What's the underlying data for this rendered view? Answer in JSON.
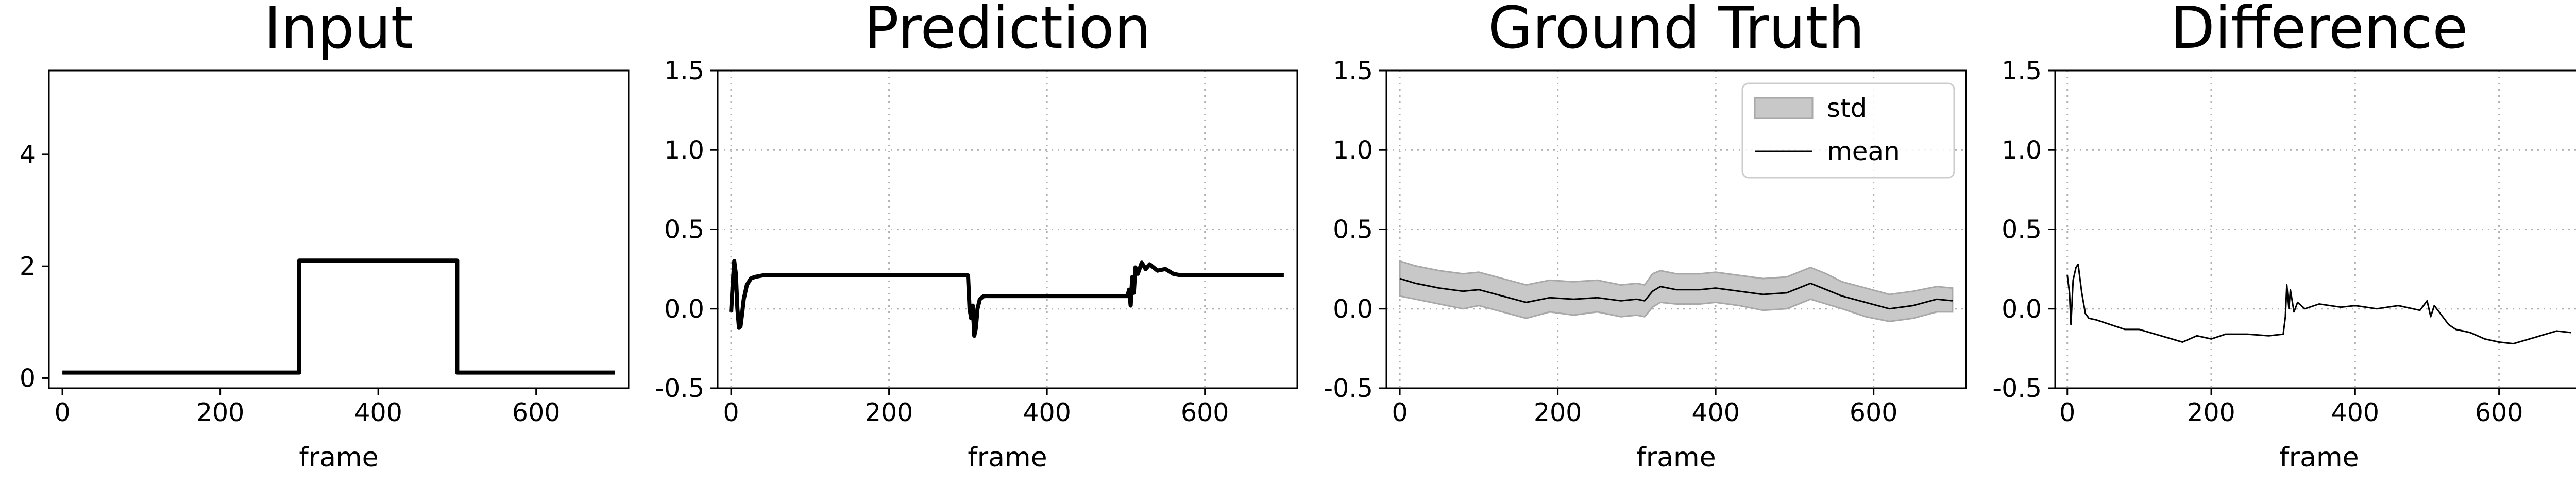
{
  "chart_data": [
    {
      "type": "line",
      "title": "Input",
      "xlabel": "frame",
      "ylabel": "",
      "xlim": [
        -17,
        717
      ],
      "ylim": [
        -0.18,
        5.5
      ],
      "xticks": [
        0,
        200,
        400,
        600
      ],
      "yticks": [
        0,
        2,
        4
      ],
      "grid": false,
      "series": [
        {
          "x": [
            0,
            300,
            300,
            500,
            500,
            700
          ],
          "y": [
            0.1,
            0.1,
            2.1,
            2.1,
            0.1,
            0.1
          ]
        }
      ]
    },
    {
      "type": "line",
      "title": "Prediction",
      "xlabel": "frame",
      "ylabel": "",
      "xlim": [
        -17,
        717
      ],
      "ylim": [
        -0.5,
        1.5
      ],
      "xticks": [
        0,
        200,
        400,
        600
      ],
      "yticks": [
        -0.5,
        0.0,
        0.5,
        1.0,
        1.5
      ],
      "grid": true,
      "series": [
        {
          "x": [
            0,
            2,
            4,
            6,
            8,
            10,
            12,
            14,
            16,
            20,
            25,
            30,
            40,
            50,
            60,
            300,
            302,
            304,
            306,
            308,
            310,
            312,
            315,
            320,
            330,
            500,
            502,
            504,
            506,
            508,
            510,
            512,
            515,
            520,
            525,
            530,
            540,
            550,
            560,
            570,
            700
          ],
          "y": [
            -0.02,
            0.15,
            0.3,
            0.22,
            0.0,
            -0.12,
            -0.11,
            -0.03,
            0.06,
            0.15,
            0.19,
            0.2,
            0.21,
            0.21,
            0.21,
            0.21,
            0.0,
            -0.06,
            0.02,
            -0.17,
            -0.12,
            0.0,
            0.06,
            0.08,
            0.08,
            0.08,
            0.08,
            0.12,
            0.02,
            0.2,
            0.1,
            0.26,
            0.22,
            0.29,
            0.25,
            0.28,
            0.24,
            0.25,
            0.22,
            0.21,
            0.21
          ]
        }
      ]
    },
    {
      "type": "line",
      "title": "Ground Truth",
      "xlabel": "frame",
      "ylabel": "",
      "xlim": [
        -17,
        717
      ],
      "ylim": [
        -0.5,
        1.5
      ],
      "xticks": [
        0,
        200,
        400,
        600
      ],
      "yticks": [
        -0.5,
        0.0,
        0.5,
        1.0,
        1.5
      ],
      "grid": true,
      "legend": "top-right",
      "series": [
        {
          "name": "std",
          "kind": "band",
          "x": [
            0,
            20,
            50,
            80,
            100,
            130,
            160,
            190,
            220,
            250,
            280,
            300,
            310,
            320,
            330,
            350,
            380,
            400,
            430,
            460,
            490,
            520,
            540,
            560,
            590,
            620,
            650,
            680,
            700
          ],
          "y_low": [
            0.08,
            0.06,
            0.03,
            0.0,
            0.02,
            -0.02,
            -0.06,
            -0.02,
            -0.04,
            -0.02,
            -0.05,
            -0.04,
            -0.05,
            0.01,
            0.04,
            0.03,
            0.03,
            0.04,
            0.02,
            -0.01,
            0.0,
            0.06,
            0.03,
            0.0,
            -0.05,
            -0.08,
            -0.06,
            -0.02,
            -0.02
          ],
          "y_high": [
            0.3,
            0.27,
            0.24,
            0.22,
            0.23,
            0.19,
            0.15,
            0.18,
            0.17,
            0.18,
            0.15,
            0.16,
            0.15,
            0.22,
            0.24,
            0.22,
            0.22,
            0.23,
            0.21,
            0.19,
            0.2,
            0.26,
            0.22,
            0.17,
            0.13,
            0.09,
            0.11,
            0.14,
            0.13
          ]
        },
        {
          "name": "mean",
          "kind": "line",
          "x": [
            0,
            20,
            50,
            80,
            100,
            130,
            160,
            190,
            220,
            250,
            280,
            300,
            310,
            320,
            330,
            350,
            380,
            400,
            430,
            460,
            490,
            520,
            540,
            560,
            590,
            620,
            650,
            680,
            700
          ],
          "y": [
            0.19,
            0.16,
            0.13,
            0.11,
            0.12,
            0.08,
            0.04,
            0.07,
            0.06,
            0.07,
            0.05,
            0.06,
            0.05,
            0.11,
            0.14,
            0.12,
            0.12,
            0.13,
            0.11,
            0.09,
            0.1,
            0.16,
            0.12,
            0.08,
            0.04,
            0.0,
            0.02,
            0.06,
            0.05
          ]
        }
      ]
    },
    {
      "type": "line",
      "title": "Difference",
      "xlabel": "frame",
      "ylabel": "",
      "xlim": [
        -17,
        717
      ],
      "ylim": [
        -0.5,
        1.5
      ],
      "xticks": [
        0,
        200,
        400,
        600
      ],
      "yticks": [
        -0.5,
        0.0,
        0.5,
        1.0,
        1.5
      ],
      "grid": true,
      "series": [
        {
          "x": [
            0,
            3,
            5,
            8,
            12,
            15,
            20,
            25,
            30,
            40,
            60,
            80,
            100,
            130,
            160,
            180,
            200,
            220,
            250,
            280,
            300,
            303,
            305,
            308,
            310,
            315,
            320,
            330,
            350,
            380,
            400,
            430,
            460,
            490,
            500,
            505,
            510,
            520,
            530,
            540,
            560,
            580,
            600,
            620,
            650,
            680,
            700
          ],
          "y": [
            0.21,
            0.1,
            -0.1,
            0.18,
            0.26,
            0.28,
            0.1,
            -0.03,
            -0.06,
            -0.07,
            -0.1,
            -0.13,
            -0.13,
            -0.17,
            -0.21,
            -0.17,
            -0.19,
            -0.16,
            -0.16,
            -0.17,
            -0.16,
            -0.05,
            0.15,
            0.0,
            0.12,
            -0.02,
            0.04,
            0.0,
            0.03,
            0.01,
            0.02,
            0.0,
            0.02,
            -0.01,
            0.05,
            -0.05,
            0.02,
            -0.04,
            -0.1,
            -0.13,
            -0.15,
            -0.19,
            -0.21,
            -0.22,
            -0.18,
            -0.14,
            -0.15
          ]
        }
      ]
    }
  ]
}
